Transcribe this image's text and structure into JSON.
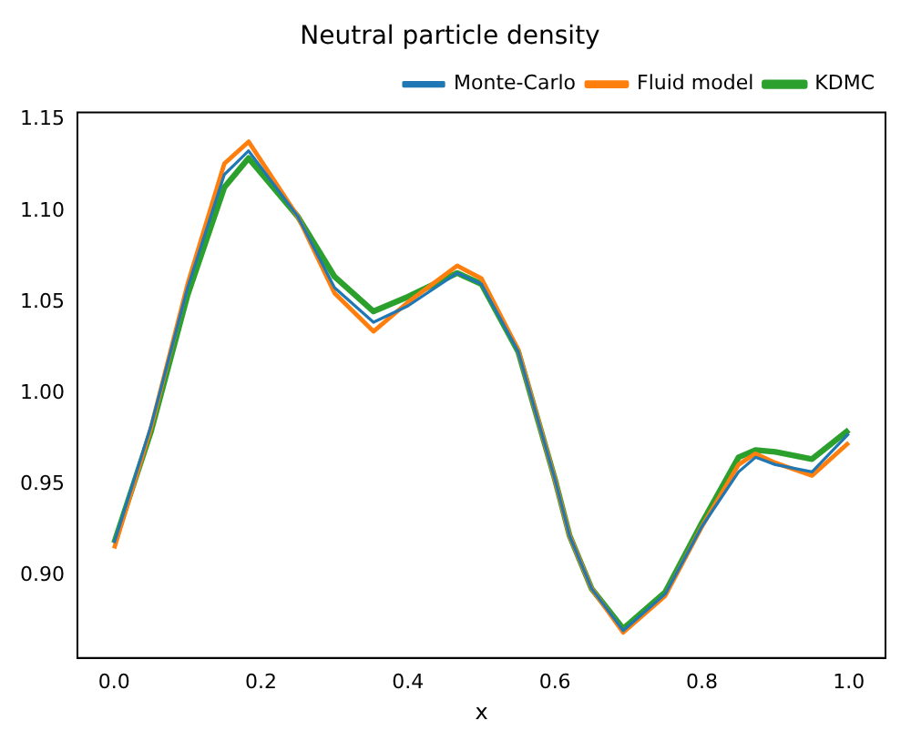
{
  "chart_data": {
    "type": "line",
    "title": "Neutral particle density",
    "xlabel": "x",
    "xlim": [
      -0.05,
      1.05
    ],
    "xticks": [
      {
        "value": 0,
        "label": "0.0"
      },
      {
        "value": 0.2,
        "label": "0.2"
      },
      {
        "value": 0.4,
        "label": "0.4"
      },
      {
        "value": 0.6,
        "label": "0.6"
      },
      {
        "value": 0.8,
        "label": "0.8"
      },
      {
        "value": 1,
        "label": "1.0"
      }
    ],
    "ylim": [
      0.855,
      1.154
    ],
    "yticks": [
      {
        "value": 0.9,
        "label": "0.90"
      },
      {
        "value": 0.95,
        "label": "0.95"
      },
      {
        "value": 1,
        "label": "1.00"
      },
      {
        "value": 1.05,
        "label": "1.05"
      },
      {
        "value": 1.1,
        "label": "1.10"
      },
      {
        "value": 1.15,
        "label": "1.15"
      }
    ],
    "legend": "top right",
    "grid": false,
    "marker": "none",
    "line_style": "solid",
    "x": [
      0,
      0.05,
      0.1,
      0.15,
      0.183,
      0.25,
      0.3,
      0.353,
      0.4,
      0.467,
      0.5,
      0.55,
      0.6,
      0.62,
      0.65,
      0.693,
      0.75,
      0.8,
      0.85,
      0.873,
      0.9,
      0.95,
      1
    ],
    "series": [
      {
        "name": "Monte-Carlo",
        "color": "#1f77b4",
        "values": [
          0.918,
          0.982,
          1.058,
          1.12,
          1.133,
          1.097,
          1.058,
          1.039,
          1.048,
          1.066,
          1.06,
          1.023,
          0.953,
          0.922,
          0.893,
          0.87,
          0.89,
          0.927,
          0.957,
          0.965,
          0.961,
          0.957,
          0.978
        ]
      },
      {
        "name": "Fluid model",
        "color": "#ff7f0e",
        "values": [
          0.915,
          0.981,
          1.06,
          1.126,
          1.138,
          1.097,
          1.055,
          1.034,
          1.05,
          1.07,
          1.063,
          1.024,
          0.953,
          0.922,
          0.893,
          0.869,
          0.889,
          0.927,
          0.961,
          0.967,
          0.962,
          0.955,
          0.973
        ]
      },
      {
        "name": "KDMC",
        "color": "#2ca02c",
        "values": [
          0.918,
          0.979,
          1.054,
          1.113,
          1.129,
          1.097,
          1.064,
          1.045,
          1.053,
          1.066,
          1.06,
          1.023,
          0.953,
          0.922,
          0.893,
          0.871,
          0.891,
          0.929,
          0.965,
          0.969,
          0.968,
          0.964,
          0.98
        ]
      }
    ]
  }
}
